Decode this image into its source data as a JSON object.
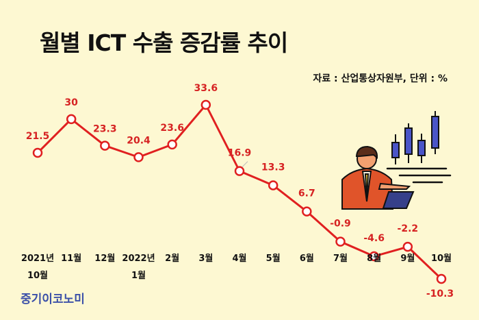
{
  "chart_data": {
    "type": "line",
    "title": "월별 ICT 수출 증감률 추이",
    "source_note": "자료 : 산업통상자원부, 단위 : %",
    "categories": [
      [
        "2021년",
        "10월"
      ],
      [
        "11월"
      ],
      [
        "12월"
      ],
      [
        "2022년",
        "1월"
      ],
      [
        "2월"
      ],
      [
        "3월"
      ],
      [
        "4월"
      ],
      [
        "5월"
      ],
      [
        "6월"
      ],
      [
        "7월"
      ],
      [
        "8월"
      ],
      [
        "9월"
      ],
      [
        "10월"
      ]
    ],
    "values": [
      21.5,
      30,
      23.3,
      20.4,
      23.6,
      33.6,
      16.9,
      13.3,
      6.7,
      -0.9,
      -4.6,
      -2.2,
      -10.3
    ],
    "value_labels": [
      "21.5",
      "30",
      "23.3",
      "20.4",
      "23.6",
      "33.6",
      "16.9",
      "13.3",
      "6.7",
      "-0.9",
      "-4.6",
      "-2.2",
      "-10.3"
    ],
    "ylim": [
      -12,
      36
    ],
    "grid": false,
    "legend": "none",
    "colors": {
      "line": "#e02020",
      "label": "#d62222",
      "axis_text": "#111111",
      "background": "#fdf8d2"
    }
  },
  "branding": {
    "logo_text": "중기이코노미"
  },
  "illustration": {
    "icon": "investor-analyzing-candlestick-chart-icon"
  }
}
